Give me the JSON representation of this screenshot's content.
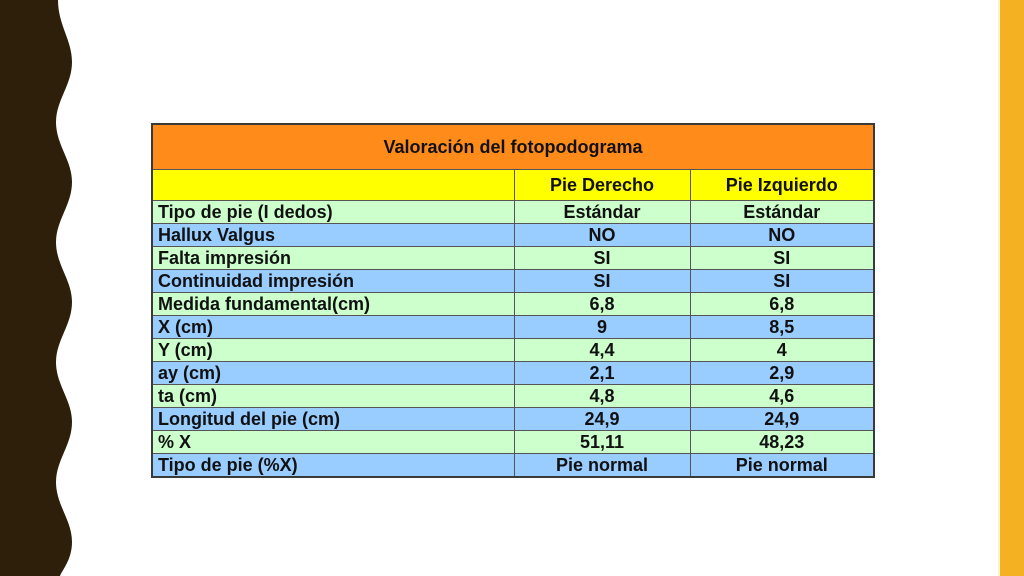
{
  "colors": {
    "title_bg": "#ff8c1a",
    "header_bg": "#ffff00",
    "row_green": "#ccffcc",
    "row_blue": "#99ccff",
    "left_border": "#2d1f0a",
    "right_bar": "#f4b223"
  },
  "table": {
    "title": "Valoración del fotopodograma",
    "columns": [
      "",
      "Pie Derecho",
      "Pie Izquierdo"
    ],
    "rows": [
      {
        "label": "Tipo de pie (I dedos)",
        "derecho": "Estándar",
        "izquierdo": "Estándar"
      },
      {
        "label": "Hallux Valgus",
        "derecho": "NO",
        "izquierdo": "NO"
      },
      {
        "label": "Falta impresión",
        "derecho": "SI",
        "izquierdo": "SI"
      },
      {
        "label": "Continuidad impresión",
        "derecho": "SI",
        "izquierdo": "SI"
      },
      {
        "label": "Medida fundamental(cm)",
        "derecho": "6,8",
        "izquierdo": "6,8"
      },
      {
        "label": "X (cm)",
        "derecho": "9",
        "izquierdo": "8,5"
      },
      {
        "label": "Y (cm)",
        "derecho": "4,4",
        "izquierdo": "4"
      },
      {
        "label": "ay (cm)",
        "derecho": "2,1",
        "izquierdo": "2,9"
      },
      {
        "label": "ta (cm)",
        "derecho": "4,8",
        "izquierdo": "4,6"
      },
      {
        "label": "Longitud del pie (cm)",
        "derecho": "24,9",
        "izquierdo": "24,9"
      },
      {
        "label": "% X",
        "derecho": "51,11",
        "izquierdo": "48,23"
      },
      {
        "label": "Tipo de pie (%X)",
        "derecho": "Pie normal",
        "izquierdo": "Pie normal"
      }
    ]
  }
}
